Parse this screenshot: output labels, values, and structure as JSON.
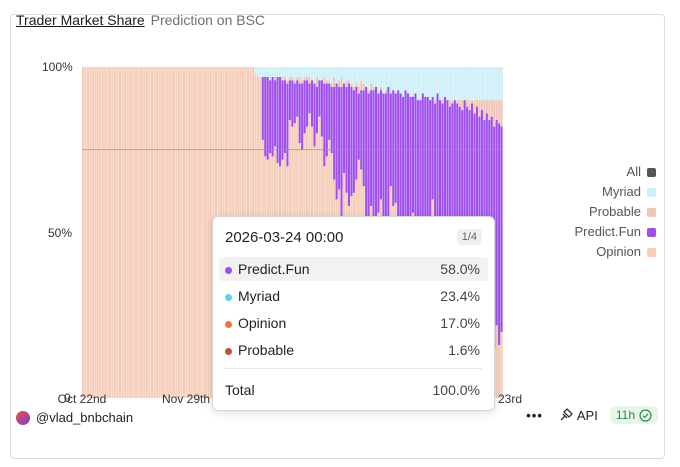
{
  "header": {
    "title": "Trader Market Share",
    "subtitle": "Prediction on BSC"
  },
  "chart_data": {
    "type": "bar",
    "stacked": true,
    "title": "Trader Market Share",
    "subtitle": "Prediction on BSC",
    "ylabel": "",
    "xlabel": "",
    "ylim": [
      0,
      100
    ],
    "y_ticks": [
      "0",
      "50%",
      "100%"
    ],
    "x_ticks": [
      "Oct 22nd",
      "Nov 29th",
      "Mar 23rd"
    ],
    "legend_position": "right",
    "grid": false,
    "series_order": [
      "Opinion",
      "Probable",
      "Predict.Fun",
      "Myriad"
    ],
    "series": [
      {
        "name": "Myriad",
        "color": "#cdeff7"
      },
      {
        "name": "Probable",
        "color": "#efc5b8"
      },
      {
        "name": "Predict.Fun",
        "color": "#9f50ec"
      },
      {
        "name": "Opinion",
        "color": "#f6cdb8"
      }
    ],
    "top_of_fun": [
      98,
      97,
      97,
      96,
      96,
      97,
      97,
      96,
      97,
      98,
      97,
      97,
      96,
      97,
      97,
      96,
      97,
      97,
      98,
      97,
      96,
      97,
      97,
      96,
      97,
      97,
      97,
      96,
      97,
      97,
      96,
      97,
      97,
      97,
      96,
      97,
      98,
      97,
      97,
      96,
      97,
      97,
      96,
      97,
      97,
      97,
      96,
      97,
      97,
      96,
      97,
      97,
      98,
      97,
      97,
      96,
      97,
      97,
      96,
      96,
      97,
      97,
      96,
      97,
      97,
      96,
      97,
      97,
      97,
      96,
      97,
      97,
      96,
      97,
      97,
      97,
      96,
      97,
      97,
      96,
      97,
      97,
      97,
      96,
      97,
      97,
      96,
      97,
      97,
      96,
      97,
      97,
      97,
      96,
      95,
      97,
      96,
      95,
      97,
      96,
      96,
      95,
      97,
      95,
      96,
      97,
      95,
      96,
      96,
      95,
      94,
      95,
      94,
      96,
      95,
      94,
      93,
      95,
      94,
      93,
      92,
      94,
      92,
      93,
      91,
      90,
      92,
      91,
      90
    ],
    "fun_bottom": [
      100,
      100,
      100,
      100,
      100,
      100,
      100,
      100,
      100,
      100,
      100,
      100,
      100,
      100,
      100,
      100,
      100,
      100,
      100,
      100,
      100,
      100,
      100,
      100,
      100,
      100,
      100,
      100,
      100,
      100,
      100,
      100,
      100,
      100,
      100,
      100,
      100,
      100,
      100,
      100,
      100,
      100,
      100,
      100,
      100,
      100,
      100,
      100,
      100,
      100,
      100,
      100,
      100,
      100,
      100,
      100,
      100,
      100,
      100,
      100,
      100,
      100,
      100,
      100,
      100,
      100,
      100,
      100,
      100,
      100,
      98,
      97,
      97,
      78,
      73,
      72,
      74,
      73,
      76,
      71,
      70,
      72,
      74,
      70,
      84,
      82,
      83,
      85,
      77,
      75,
      80,
      82,
      86,
      82,
      76,
      80,
      85,
      79,
      70,
      73,
      78,
      74,
      66,
      60,
      63,
      55,
      68,
      62,
      58,
      61,
      62,
      66,
      72,
      69,
      64,
      54,
      55,
      58,
      52,
      46,
      56,
      60,
      49,
      55,
      50,
      64,
      58,
      59,
      51,
      50,
      54,
      52,
      46,
      45,
      56,
      50,
      43,
      47,
      55,
      50,
      48,
      52,
      60,
      51,
      41,
      46,
      42,
      32,
      38,
      50,
      42,
      36,
      48,
      40,
      30,
      45,
      36,
      22,
      41,
      33,
      30,
      12,
      35,
      28,
      15,
      46,
      36,
      15,
      22,
      16,
      20
    ],
    "fun_top_override": [
      null,
      null,
      null,
      null,
      null,
      null,
      null,
      null,
      null,
      null,
      null,
      null,
      null,
      null,
      null,
      null,
      null,
      null,
      null,
      null,
      null,
      null,
      null,
      null,
      null,
      null,
      null,
      null,
      null,
      null,
      null,
      null,
      null,
      null,
      null,
      null,
      null,
      null,
      null,
      null,
      null,
      null,
      null,
      null,
      null,
      null,
      null,
      null,
      null,
      null,
      null,
      null,
      null,
      null,
      null,
      null,
      null,
      null,
      null,
      null,
      null,
      null,
      null,
      null,
      null,
      null,
      null,
      null,
      null,
      null,
      null,
      null,
      null,
      97,
      97,
      97,
      96,
      97,
      96,
      97,
      97,
      96,
      96,
      95,
      96,
      96,
      95,
      96,
      95,
      95,
      96,
      96,
      95,
      96,
      95,
      94,
      96,
      96,
      95,
      95,
      95,
      94,
      94,
      95,
      94,
      94,
      95,
      94,
      95,
      94,
      93,
      94,
      92,
      93,
      93,
      94,
      92,
      93,
      93,
      94,
      92,
      93,
      92,
      92,
      94,
      92,
      93,
      92,
      93,
      92,
      91,
      93,
      92,
      91,
      91,
      92,
      90,
      90,
      92,
      91,
      91,
      90,
      91,
      89,
      92,
      90,
      89,
      91,
      90,
      88,
      89,
      90,
      89,
      88,
      87,
      90,
      88,
      87,
      89,
      86,
      88,
      85,
      87,
      84,
      86,
      84,
      85,
      82,
      84,
      83,
      82,
      80,
      82,
      79,
      78,
      80,
      77,
      75,
      76
    ],
    "last_point": {
      "date": "2026-03-24 00:00",
      "page": "1/4",
      "values": [
        {
          "name": "Predict.Fun",
          "value": "58.0%",
          "color": "#9f50ec"
        },
        {
          "name": "Myriad",
          "value": "23.4%",
          "color": "#5fd2ee"
        },
        {
          "name": "Opinion",
          "value": "17.0%",
          "color": "#ec7a36"
        },
        {
          "name": "Probable",
          "value": "1.6%",
          "color": "#bf4f33"
        }
      ],
      "total_label": "Total",
      "total_value": "100.0%"
    }
  },
  "legend": [
    {
      "label": "All",
      "color": "#555555"
    },
    {
      "label": "Myriad",
      "color": "#cdeff7"
    },
    {
      "label": "Probable",
      "color": "#efc5b8"
    },
    {
      "label": "Predict.Fun",
      "color": "#9f50ec"
    },
    {
      "label": "Opinion",
      "color": "#f6cdb8"
    }
  ],
  "footer": {
    "handle": "@vlad_bnbchain",
    "api_label": "API",
    "refresh_badge": "11h"
  }
}
